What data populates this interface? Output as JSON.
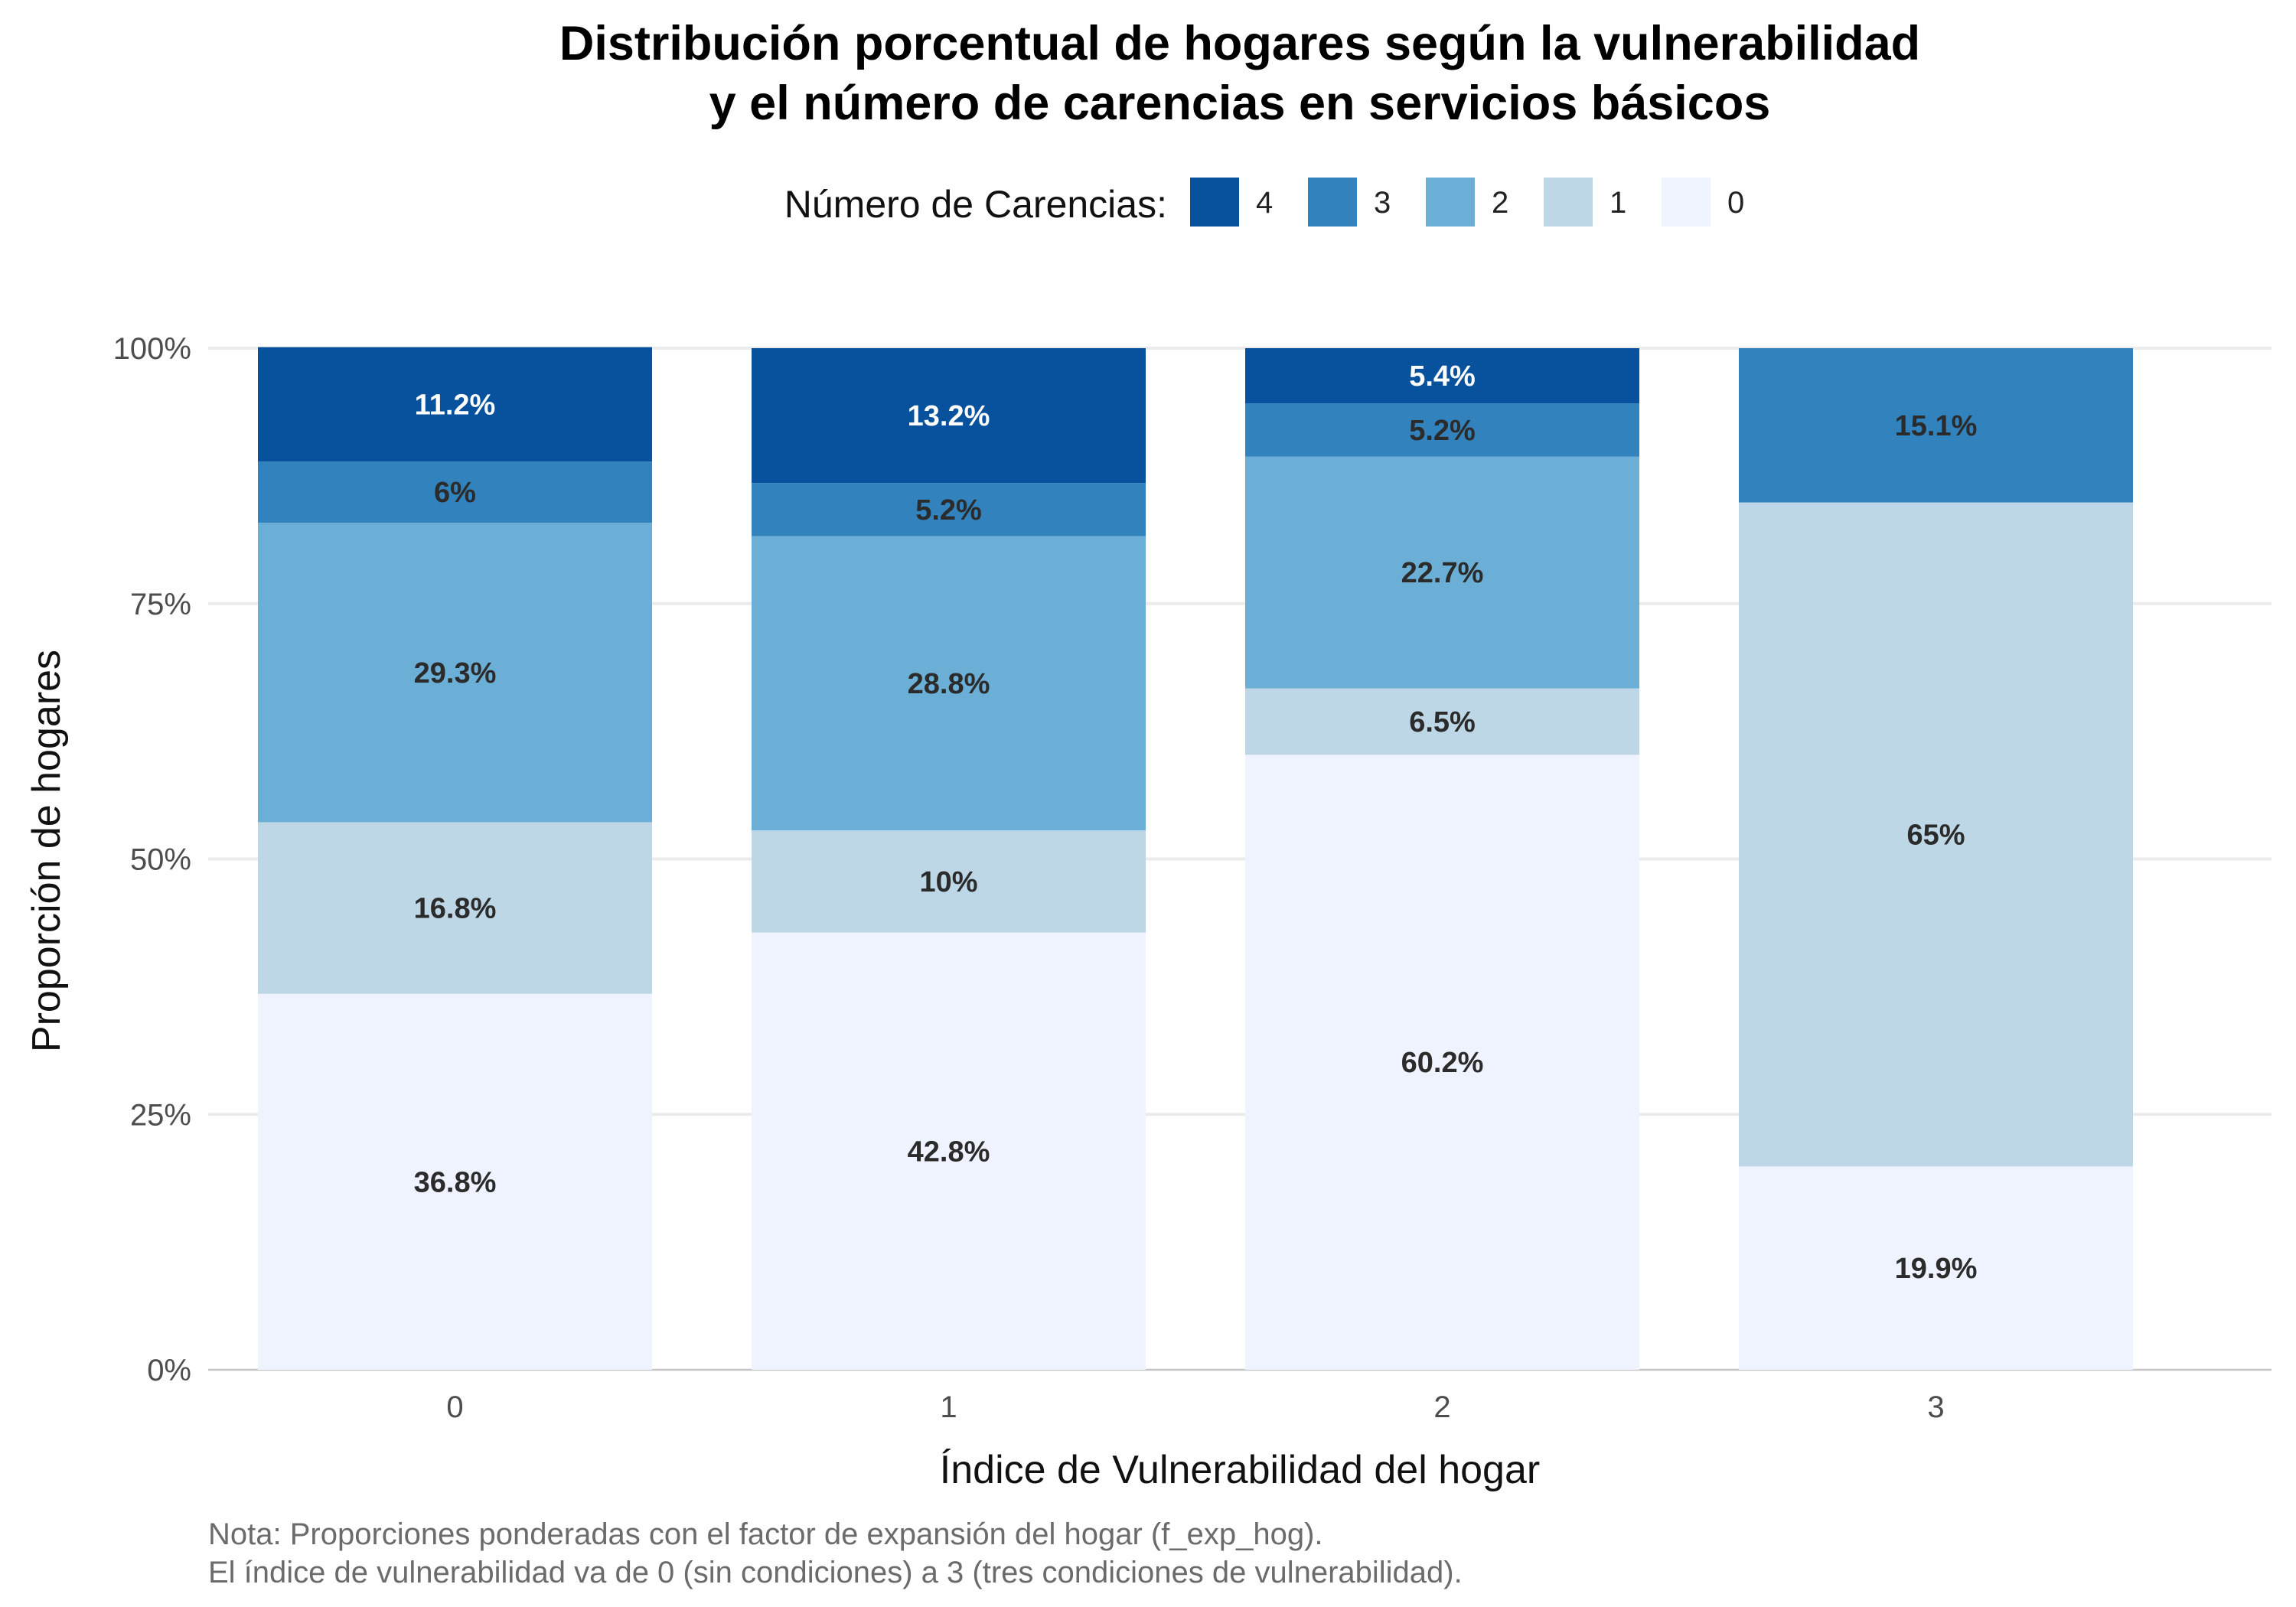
{
  "chart_data": {
    "type": "bar",
    "stacked": true,
    "title": [
      "Distribución porcentual de hogares según la vulnerabilidad",
      "y el número de carencias en servicios básicos"
    ],
    "xlabel": "Índice de Vulnerabilidad del hogar",
    "ylabel": "Proporción de hogares",
    "categories": [
      "0",
      "1",
      "2",
      "3"
    ],
    "ylim": [
      0,
      1
    ],
    "yticks": [
      {
        "value": 0,
        "label": "0%"
      },
      {
        "value": 0.25,
        "label": "25%"
      },
      {
        "value": 0.5,
        "label": "50%"
      },
      {
        "value": 0.75,
        "label": "75%"
      },
      {
        "value": 1,
        "label": "100%"
      }
    ],
    "grid": true,
    "legend": {
      "title": "Número de Carencias:",
      "position": "top",
      "order": [
        "4",
        "3",
        "2",
        "1",
        "0"
      ]
    },
    "series": [
      {
        "name": "0",
        "color": "#eff3ff",
        "label_color": "#2b2b2b",
        "values": [
          0.368,
          0.428,
          0.602,
          0.199
        ],
        "labels": [
          "36.8%",
          "42.8%",
          "60.2%",
          "19.9%"
        ]
      },
      {
        "name": "1",
        "color": "#bdd7e7",
        "label_color": "#2b2b2b",
        "values": [
          0.168,
          0.1,
          0.065,
          0.65
        ],
        "labels": [
          "16.8%",
          "10%",
          "6.5%",
          "65%"
        ]
      },
      {
        "name": "2",
        "color": "#6baed6",
        "label_color": "#2b2b2b",
        "values": [
          0.293,
          0.288,
          0.227,
          0
        ],
        "labels": [
          "29.3%",
          "28.8%",
          "22.7%",
          ""
        ]
      },
      {
        "name": "3",
        "color": "#3182bd",
        "label_color": "#2b2b2b",
        "values": [
          0.06,
          0.052,
          0.052,
          0.151
        ],
        "labels": [
          "6%",
          "5.2%",
          "5.2%",
          "15.1%"
        ]
      },
      {
        "name": "4",
        "color": "#08519c",
        "label_color": "#ffffff",
        "values": [
          0.112,
          0.132,
          0.054,
          0
        ],
        "labels": [
          "11.2%",
          "13.2%",
          "5.4%",
          ""
        ]
      }
    ],
    "caption": [
      "Nota: Proporciones ponderadas con el factor de expansión del hogar (f_exp_hog).",
      "El índice de vulnerabilidad va de 0 (sin condiciones) a 3 (tres condiciones de vulnerabilidad)."
    ]
  }
}
